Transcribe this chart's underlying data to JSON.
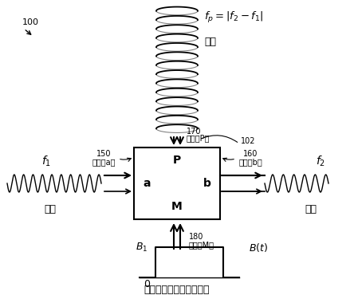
{
  "bg_color": "#ffffff",
  "label_100": "100",
  "label_fp_eq": "$f_p = |f_2 - f_1|$",
  "label_pump": "泵浦",
  "label_f1": "$f_1$",
  "label_f2": "$f_2$",
  "label_input": "输入",
  "label_output": "输出",
  "label_P": "P",
  "label_a": "a",
  "label_b": "b",
  "label_M": "M",
  "label_150": "150",
  "label_porta": "（端口a）",
  "label_160": "160",
  "label_portb": "（端口b）",
  "label_170": "170",
  "label_portP": "（端口P）",
  "label_180": "180",
  "label_portM": "（端口M）",
  "label_102": "102",
  "label_B1": "$B_1$",
  "label_Bt": "$B(t)$",
  "label_0": "0",
  "label_bottom": "磁通量调制（方形脉冲）"
}
